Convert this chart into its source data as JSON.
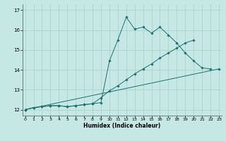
{
  "background_color": "#c5e8e5",
  "grid_color": "#a8cece",
  "line_color": "#1e7070",
  "xlim": [
    -0.3,
    23.3
  ],
  "ylim": [
    11.7,
    17.3
  ],
  "yticks": [
    12,
    13,
    14,
    15,
    16,
    17
  ],
  "xticks": [
    0,
    1,
    2,
    3,
    4,
    5,
    6,
    7,
    8,
    9,
    10,
    11,
    12,
    13,
    14,
    15,
    16,
    17,
    18,
    19,
    20,
    21,
    22,
    23
  ],
  "xlabel": "Humidex (Indice chaleur)",
  "line1_x": [
    0,
    1,
    2,
    3,
    4,
    5,
    6,
    7,
    8,
    9,
    10,
    11,
    12,
    13,
    14,
    15,
    16,
    17,
    18,
    19,
    20,
    21,
    22
  ],
  "line1_y": [
    12.0,
    12.1,
    12.15,
    12.2,
    12.2,
    12.15,
    12.2,
    12.25,
    12.3,
    12.35,
    14.45,
    15.5,
    16.65,
    16.05,
    16.15,
    15.85,
    16.15,
    15.75,
    15.35,
    14.85,
    14.45,
    14.1,
    14.05
  ],
  "line2_x": [
    0,
    1,
    2,
    3,
    4,
    5,
    6,
    7,
    8,
    9,
    10,
    11,
    12,
    13,
    14,
    15,
    16,
    17,
    18,
    19,
    20
  ],
  "line2_y": [
    12.0,
    12.1,
    12.15,
    12.2,
    12.2,
    12.15,
    12.2,
    12.25,
    12.3,
    12.6,
    12.95,
    13.2,
    13.5,
    13.8,
    14.05,
    14.3,
    14.6,
    14.85,
    15.1,
    15.35,
    15.5
  ],
  "line3_x": [
    0,
    23
  ],
  "line3_y": [
    12.0,
    14.05
  ]
}
